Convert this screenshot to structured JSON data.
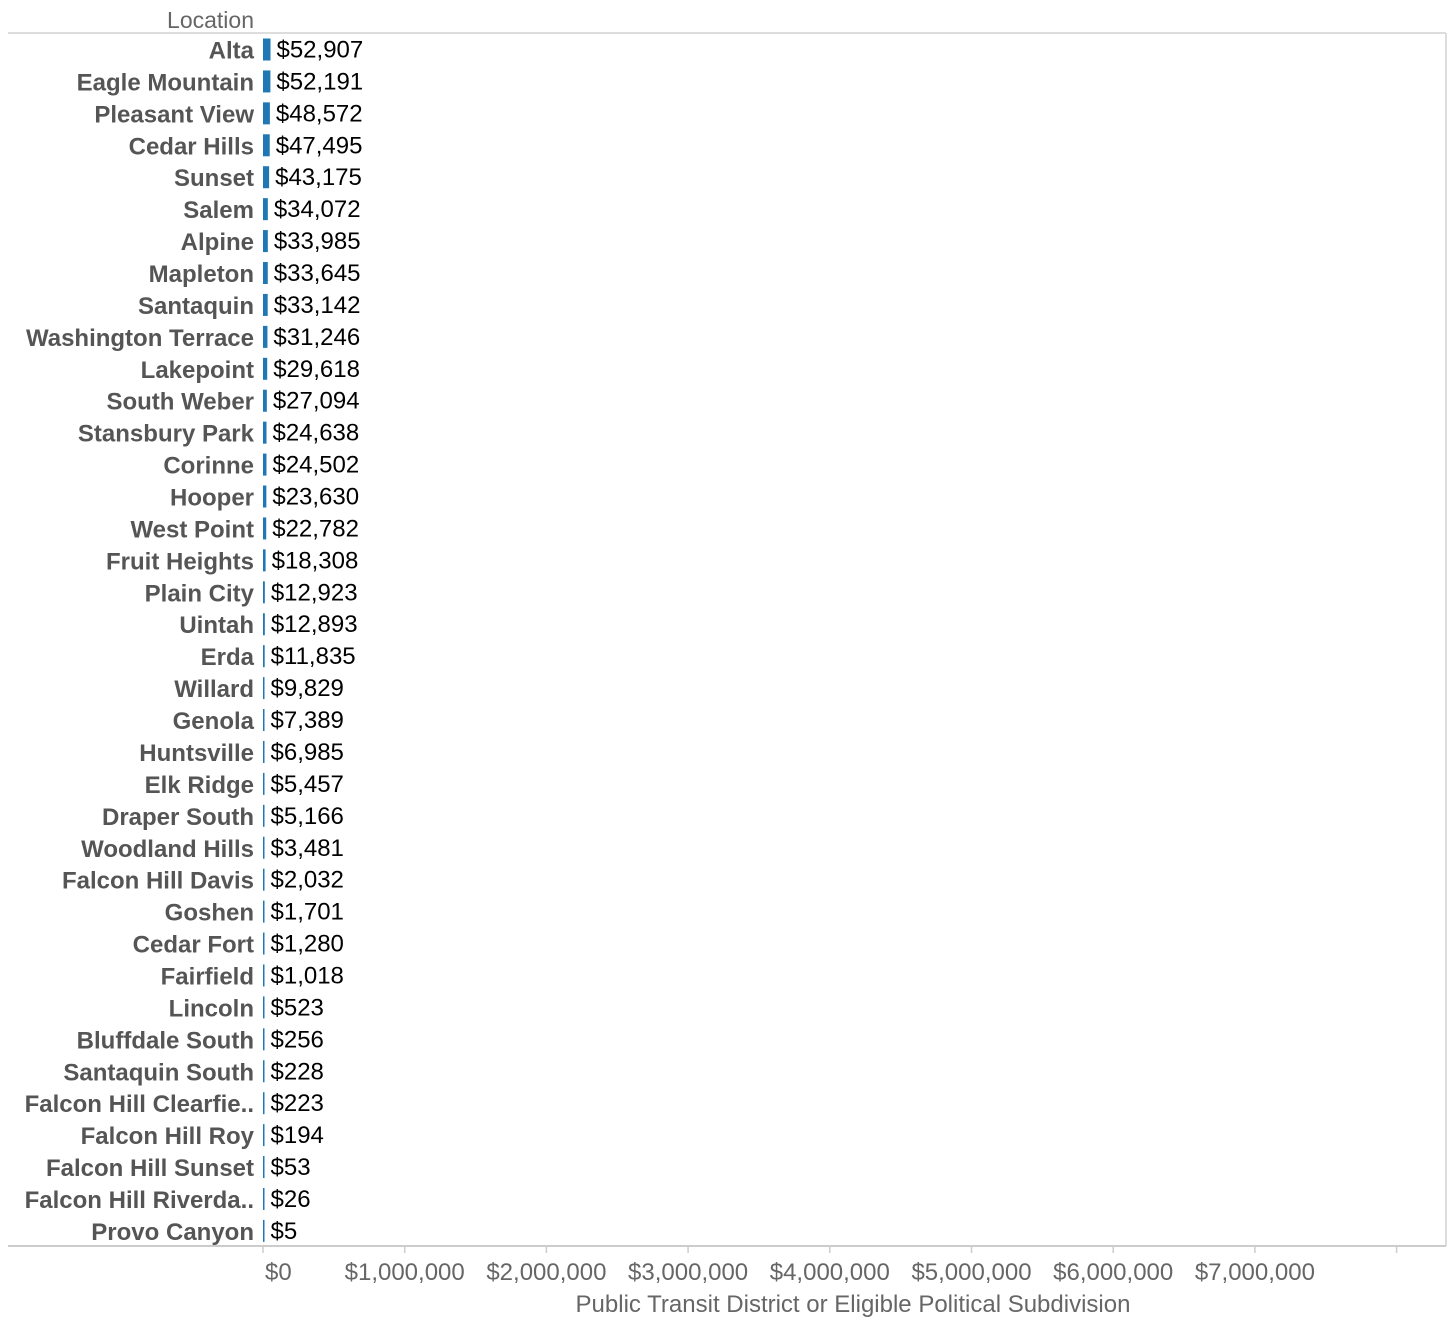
{
  "chart_data": {
    "type": "bar",
    "orientation": "horizontal",
    "row_header": "Location",
    "xlabel": "Public Transit District or Eligible Political Subdivision",
    "xlim": [
      0,
      8000000
    ],
    "x_ticks": [
      0,
      1000000,
      2000000,
      3000000,
      4000000,
      5000000,
      6000000,
      7000000
    ],
    "x_tick_labels": [
      "$0",
      "$1,000,000",
      "$2,000,000",
      "$3,000,000",
      "$4,000,000",
      "$5,000,000",
      "$6,000,000",
      "$7,000,000"
    ],
    "bar_color": "#1f77b4",
    "grid": false,
    "categories": [
      "Alta",
      "Eagle Mountain",
      "Pleasant View",
      "Cedar Hills",
      "Sunset",
      "Salem",
      "Alpine",
      "Mapleton",
      "Santaquin",
      "Washington Terrace",
      "Lakepoint",
      "South Weber",
      "Stansbury Park",
      "Corinne",
      "Hooper",
      "West Point",
      "Fruit Heights",
      "Plain City",
      "Uintah",
      "Erda",
      "Willard",
      "Genola",
      "Huntsville",
      "Elk Ridge",
      "Draper South",
      "Woodland Hills",
      "Falcon Hill Davis",
      "Goshen",
      "Cedar Fort",
      "Fairfield",
      "Lincoln",
      "Bluffdale South",
      "Santaquin South",
      "Falcon Hill Clearfie..",
      "Falcon Hill Roy",
      "Falcon Hill Sunset",
      "Falcon Hill Riverda..",
      "Provo Canyon"
    ],
    "values": [
      52907,
      52191,
      48572,
      47495,
      43175,
      34072,
      33985,
      33645,
      33142,
      31246,
      29618,
      27094,
      24638,
      24502,
      23630,
      22782,
      18308,
      12923,
      12893,
      11835,
      9829,
      7389,
      6985,
      5457,
      5166,
      3481,
      2032,
      1701,
      1280,
      1018,
      523,
      256,
      228,
      223,
      194,
      53,
      26,
      5
    ],
    "value_labels": [
      "$52,907",
      "$52,191",
      "$48,572",
      "$47,495",
      "$43,175",
      "$34,072",
      "$33,985",
      "$33,645",
      "$33,142",
      "$31,246",
      "$29,618",
      "$27,094",
      "$24,638",
      "$24,502",
      "$23,630",
      "$22,782",
      "$18,308",
      "$12,923",
      "$12,893",
      "$11,835",
      "$9,829",
      "$7,389",
      "$6,985",
      "$5,457",
      "$5,166",
      "$3,481",
      "$2,032",
      "$1,701",
      "$1,280",
      "$1,018",
      "$523",
      "$256",
      "$228",
      "$223",
      "$194",
      "$53",
      "$26",
      "$5"
    ]
  }
}
